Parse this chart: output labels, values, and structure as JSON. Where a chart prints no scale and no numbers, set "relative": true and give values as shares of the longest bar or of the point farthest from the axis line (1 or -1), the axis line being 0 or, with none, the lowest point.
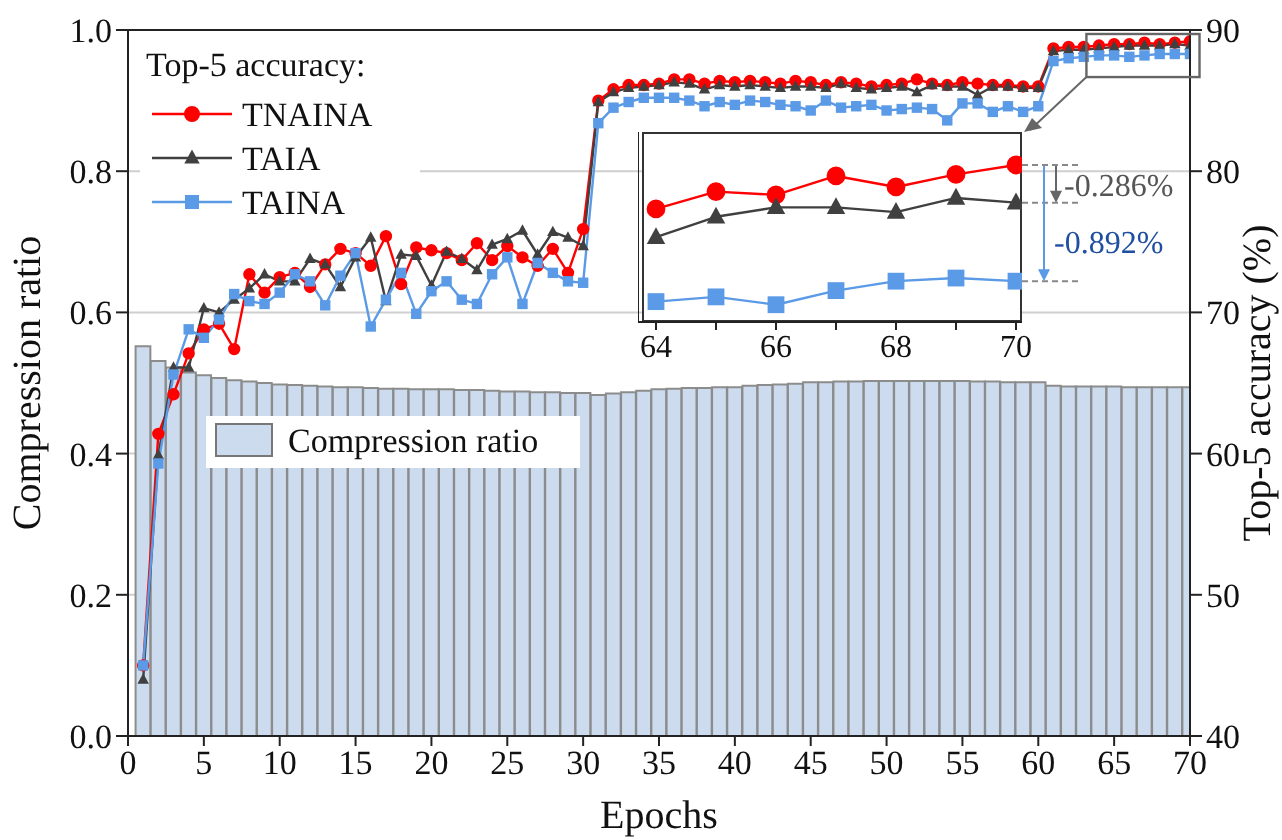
{
  "chart_data": [
    {
      "type": "bar",
      "xlabel": "Epochs",
      "ylabel": "Compression ratio",
      "y2label": "Top-5 accuracy (%)",
      "legend_title": "Top-5 accuracy:",
      "x": [
        1,
        2,
        3,
        4,
        5,
        6,
        7,
        8,
        9,
        10,
        11,
        12,
        13,
        14,
        15,
        16,
        17,
        18,
        19,
        20,
        21,
        22,
        23,
        24,
        25,
        26,
        27,
        28,
        29,
        30,
        31,
        32,
        33,
        34,
        35,
        36,
        37,
        38,
        39,
        40,
        41,
        42,
        43,
        44,
        45,
        46,
        47,
        48,
        49,
        50,
        51,
        52,
        53,
        54,
        55,
        56,
        57,
        58,
        59,
        60,
        61,
        62,
        63,
        64,
        65,
        66,
        67,
        68,
        69,
        70
      ],
      "xlim": [
        0,
        70
      ],
      "xticks": [
        0,
        5,
        10,
        15,
        20,
        25,
        30,
        35,
        40,
        45,
        50,
        55,
        60,
        65,
        70
      ],
      "ylim": [
        0,
        1
      ],
      "yticks": [
        {
          "value": 0,
          "label": "0.0"
        },
        {
          "value": 0.2,
          "label": "0.2"
        },
        {
          "value": 0.4,
          "label": "0.4"
        },
        {
          "value": 0.6,
          "label": "0.6"
        },
        {
          "value": 0.8,
          "label": "0.8"
        },
        {
          "value": 1,
          "label": "1.0"
        }
      ],
      "y2lim": [
        40,
        90
      ],
      "y2ticks": [
        40,
        50,
        60,
        70,
        80,
        90
      ],
      "grid": "y",
      "legend": "top left",
      "series": [
        {
          "name": "Compression ratio",
          "color": "#ccdcee",
          "values": [
            0.552,
            0.531,
            0.522,
            0.515,
            0.511,
            0.507,
            0.504,
            0.502,
            0.5,
            0.498,
            0.497,
            0.496,
            0.495,
            0.494,
            0.494,
            0.493,
            0.492,
            0.492,
            0.491,
            0.491,
            0.491,
            0.49,
            0.49,
            0.489,
            0.488,
            0.488,
            0.487,
            0.487,
            0.486,
            0.486,
            0.483,
            0.485,
            0.487,
            0.489,
            0.491,
            0.492,
            0.493,
            0.493,
            0.494,
            0.494,
            0.496,
            0.497,
            0.498,
            0.499,
            0.501,
            0.501,
            0.502,
            0.502,
            0.503,
            0.503,
            0.503,
            0.503,
            0.503,
            0.503,
            0.503,
            0.502,
            0.502,
            0.501,
            0.501,
            0.501,
            0.496,
            0.495,
            0.495,
            0.495,
            0.495,
            0.494,
            0.494,
            0.494,
            0.494,
            0.494
          ]
        },
        {
          "name": "TNAINA",
          "type": "line",
          "axis": "y2",
          "color": "#ff0000",
          "marker": "circle",
          "values": [
            45.0,
            61.4,
            64.2,
            67.1,
            68.8,
            69.2,
            67.4,
            72.7,
            71.4,
            72.5,
            72.8,
            71.8,
            73.4,
            74.5,
            74.2,
            73.3,
            75.4,
            72.0,
            74.6,
            74.4,
            74.2,
            73.7,
            74.9,
            73.7,
            74.7,
            73.9,
            73.3,
            74.5,
            72.8,
            75.9,
            85.0,
            85.8,
            86.1,
            86.1,
            86.2,
            86.5,
            86.5,
            86.2,
            86.4,
            86.3,
            86.4,
            86.3,
            86.2,
            86.4,
            86.3,
            86.1,
            86.3,
            86.2,
            86.0,
            86.1,
            86.2,
            86.5,
            86.2,
            86.1,
            86.3,
            86.2,
            86.1,
            86.1,
            86.0,
            86.0,
            88.7,
            88.8,
            88.8,
            88.9,
            89.0,
            89.0,
            89.1,
            89.0,
            89.1,
            89.2
          ]
        },
        {
          "name": "TAIA",
          "type": "line",
          "axis": "y2",
          "color": "#404040",
          "marker": "triangle",
          "values": [
            44.0,
            59.9,
            66.1,
            66.1,
            70.3,
            70.0,
            70.9,
            71.7,
            72.7,
            72.2,
            72.2,
            73.8,
            73.4,
            71.8,
            73.9,
            75.3,
            70.8,
            74.1,
            74.0,
            71.9,
            74.3,
            73.8,
            73.0,
            74.8,
            75.2,
            75.8,
            74.1,
            75.7,
            75.3,
            74.7,
            84.9,
            85.6,
            85.9,
            86.0,
            86.1,
            86.3,
            86.2,
            85.8,
            86.1,
            86.0,
            86.1,
            86.0,
            85.9,
            86.0,
            86.0,
            85.9,
            86.2,
            85.9,
            85.8,
            85.9,
            86.0,
            85.6,
            86.1,
            86.0,
            86.0,
            85.4,
            86.0,
            86.0,
            85.9,
            85.9,
            88.5,
            88.6,
            88.6,
            88.7,
            88.8,
            88.9,
            88.9,
            88.9,
            89.0,
            88.9
          ]
        },
        {
          "name": "TAINA",
          "type": "line",
          "axis": "y2",
          "color": "#5a9ae6",
          "marker": "square",
          "values": [
            45.0,
            59.3,
            65.6,
            68.8,
            68.2,
            69.5,
            71.3,
            70.8,
            70.6,
            71.4,
            72.7,
            72.2,
            70.5,
            72.6,
            74.2,
            69.0,
            70.9,
            72.8,
            69.9,
            71.5,
            72.2,
            70.9,
            70.6,
            72.7,
            73.9,
            70.6,
            73.5,
            72.8,
            72.2,
            72.1,
            83.4,
            84.5,
            84.9,
            85.2,
            85.2,
            85.2,
            85.0,
            84.6,
            84.9,
            84.7,
            85.0,
            84.9,
            84.7,
            84.6,
            84.3,
            85.0,
            84.5,
            84.6,
            84.7,
            84.3,
            84.4,
            84.5,
            84.4,
            83.6,
            84.8,
            84.8,
            84.2,
            84.6,
            84.2,
            84.6,
            87.8,
            88.0,
            88.1,
            88.2,
            88.2,
            88.1,
            88.2,
            88.3,
            88.3,
            88.3
          ]
        }
      ]
    },
    {
      "type": "line",
      "x": [
        64,
        65,
        66,
        67,
        68,
        69,
        70
      ],
      "xlim": [
        63.7,
        70.1
      ],
      "xticks": [
        64,
        {
          "value": 65,
          "label": null
        },
        66,
        {
          "value": 67,
          "label": null
        },
        68,
        {
          "value": 69,
          "label": null
        },
        70
      ],
      "relative": true,
      "tick_labels": "x",
      "annotations": [
        "-0.286%",
        "-0.892%"
      ],
      "series": [
        {
          "color": "#ff0000",
          "marker": "circle",
          "values": [
            0.72,
            0.83,
            0.81,
            0.93,
            0.86,
            0.94,
            1
          ]
        },
        {
          "color": "#404040",
          "marker": "triangle",
          "values": [
            0.54,
            0.67,
            0.73,
            0.73,
            0.7,
            0.79,
            0.76
          ]
        },
        {
          "color": "#5a9ae6",
          "marker": "square",
          "values": [
            0.13,
            0.16,
            0.11,
            0.2,
            0.26,
            0.28,
            0.26
          ]
        }
      ]
    }
  ]
}
